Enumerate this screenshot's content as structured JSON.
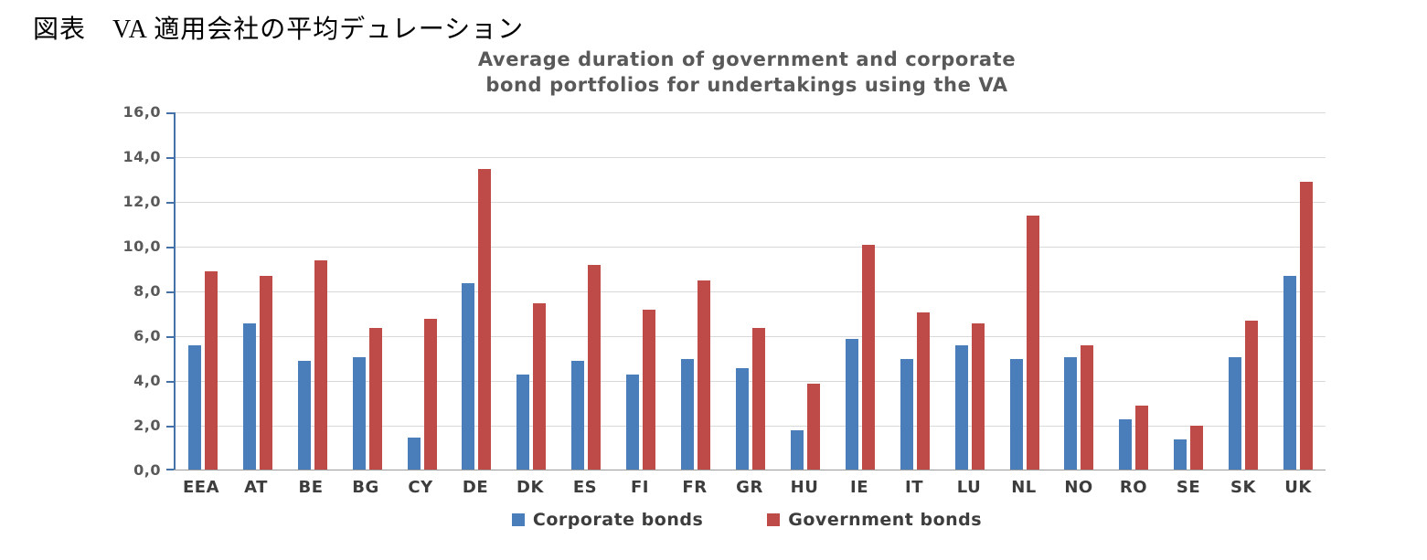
{
  "page": {
    "heading_jp": "図表　VA 適用会社の平均デュレーション"
  },
  "chart_data": {
    "type": "bar",
    "title_line1": "Average duration of government and corporate",
    "title_line2": "bond portfolios for undertakings using the VA",
    "categories": [
      "EEA",
      "AT",
      "BE",
      "BG",
      "CY",
      "DE",
      "DK",
      "ES",
      "FI",
      "FR",
      "GR",
      "HU",
      "IE",
      "IT",
      "LU",
      "NL",
      "NO",
      "RO",
      "SE",
      "SK",
      "UK"
    ],
    "series": [
      {
        "name": "Corporate bonds",
        "color": "#4a7ebb",
        "values": [
          5.6,
          6.6,
          4.9,
          5.1,
          1.5,
          8.4,
          4.3,
          4.9,
          4.3,
          5.0,
          4.6,
          1.8,
          5.9,
          5.0,
          5.6,
          5.0,
          5.1,
          2.3,
          1.4,
          5.1,
          8.7
        ]
      },
      {
        "name": "Government bonds",
        "color": "#be4b48",
        "values": [
          8.9,
          8.7,
          9.4,
          6.4,
          6.8,
          13.5,
          7.5,
          9.2,
          7.2,
          8.5,
          6.4,
          3.9,
          10.1,
          7.1,
          6.6,
          11.4,
          5.6,
          2.9,
          2.0,
          6.7,
          12.9
        ]
      }
    ],
    "ylim": [
      0,
      16
    ],
    "ytick_step": 2,
    "ytick_labels": [
      "0,0",
      "2,0",
      "4,0",
      "6,0",
      "8,0",
      "10,0",
      "12,0",
      "14,0",
      "16,0"
    ],
    "grid": true,
    "legend_position": "bottom"
  },
  "colors": {
    "title_text": "#595959",
    "axis_text": "#595959",
    "category_text": "#3d3d3d",
    "gridline": "#d9d9d9",
    "axis_line": "#4472a8",
    "axis_x_line": "#9b9b9b"
  }
}
